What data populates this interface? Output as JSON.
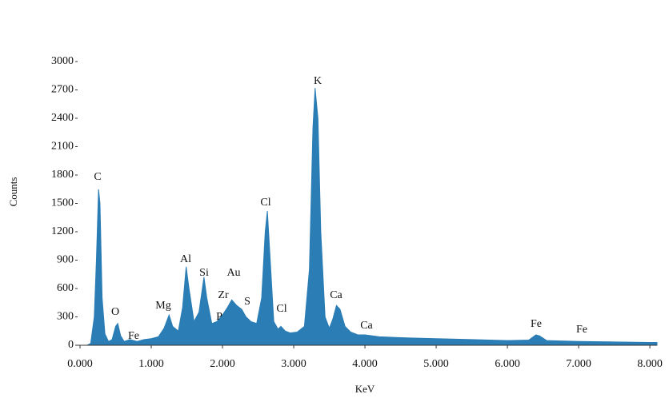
{
  "chart_data": {
    "type": "area",
    "x_label": "KeV",
    "y_label": "Counts",
    "color": "#2b7db5",
    "xlim": [
      0,
      8.1
    ],
    "ylim": [
      0,
      3000
    ],
    "xticks": [
      {
        "value": 0,
        "label": "0.000"
      },
      {
        "value": 1,
        "label": "1.000"
      },
      {
        "value": 2,
        "label": "2.000"
      },
      {
        "value": 3,
        "label": "3.000"
      },
      {
        "value": 4,
        "label": "4.000"
      },
      {
        "value": 5,
        "label": "5.000"
      },
      {
        "value": 6,
        "label": "6.000"
      },
      {
        "value": 7,
        "label": "7.000"
      },
      {
        "value": 8,
        "label": "8.000"
      }
    ],
    "yticks": [
      0,
      300,
      600,
      900,
      1200,
      1500,
      1800,
      2100,
      2400,
      2700,
      3000
    ],
    "x": [
      0.1,
      0.15,
      0.2,
      0.23,
      0.26,
      0.28,
      0.31,
      0.35,
      0.4,
      0.45,
      0.5,
      0.53,
      0.57,
      0.62,
      0.7,
      0.8,
      0.9,
      1.0,
      1.1,
      1.18,
      1.25,
      1.3,
      1.38,
      1.44,
      1.49,
      1.53,
      1.6,
      1.67,
      1.74,
      1.78,
      1.85,
      1.92,
      2.0,
      2.07,
      2.13,
      2.2,
      2.27,
      2.33,
      2.4,
      2.48,
      2.55,
      2.6,
      2.63,
      2.67,
      2.72,
      2.78,
      2.82,
      2.88,
      2.95,
      3.05,
      3.15,
      3.22,
      3.27,
      3.3,
      3.34,
      3.38,
      3.44,
      3.5,
      3.55,
      3.6,
      3.65,
      3.72,
      3.8,
      3.9,
      4.0,
      4.2,
      4.5,
      5.0,
      5.5,
      6.0,
      6.3,
      6.4,
      6.45,
      6.55,
      7.0,
      7.5,
      8.0,
      8.1
    ],
    "values": [
      0,
      20,
      300,
      900,
      1650,
      1500,
      500,
      120,
      40,
      60,
      200,
      230,
      100,
      40,
      60,
      40,
      60,
      70,
      90,
      180,
      320,
      200,
      150,
      400,
      830,
      600,
      250,
      350,
      720,
      500,
      230,
      250,
      320,
      400,
      480,
      420,
      380,
      300,
      250,
      230,
      500,
      1200,
      1420,
      900,
      250,
      170,
      200,
      150,
      130,
      140,
      200,
      800,
      2300,
      2720,
      2400,
      1200,
      300,
      180,
      280,
      420,
      380,
      200,
      140,
      110,
      110,
      90,
      80,
      70,
      60,
      50,
      55,
      110,
      100,
      50,
      40,
      35,
      30,
      30
    ],
    "annotations": [
      "C",
      "O",
      "Fe",
      "Mg",
      "Al",
      "Si",
      "Zr",
      "Au",
      "P",
      "S",
      "Cl",
      "Cl",
      "K",
      "Ca",
      "Ca",
      "Fe",
      "Fe"
    ]
  }
}
